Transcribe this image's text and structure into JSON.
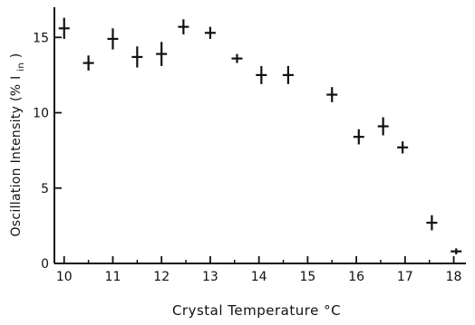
{
  "chart_data": {
    "type": "scatter",
    "title": "",
    "xlabel": "Crystal Temperature °C",
    "ylabel": "Oscillation Intensity (% I",
    "ylabel_subscript": "in",
    "ylabel_suffix": ")",
    "xlim": [
      9.8,
      18.25
    ],
    "ylim": [
      0,
      17
    ],
    "x_ticks": [
      10,
      11,
      12,
      13,
      14,
      15,
      16,
      17,
      18
    ],
    "x_tick_labels": [
      "10",
      "11",
      "12",
      "13",
      "14",
      "15",
      "16",
      "17",
      "18"
    ],
    "x_minor_ticks": [
      10.5,
      11.5,
      12.5,
      13.5,
      14.5,
      15.5,
      16.5,
      17.5
    ],
    "y_ticks": [
      0,
      5,
      10,
      15
    ],
    "y_tick_labels": [
      "0",
      "5",
      "10",
      "15"
    ],
    "grid": false,
    "legend": "none",
    "marker": "cross with vertical error bar",
    "series": [
      {
        "points": [
          {
            "x": 10.0,
            "y": 15.6,
            "err": 0.7
          },
          {
            "x": 10.5,
            "y": 13.3,
            "err": 0.5
          },
          {
            "x": 11.0,
            "y": 14.9,
            "err": 0.7
          },
          {
            "x": 11.5,
            "y": 13.7,
            "err": 0.7
          },
          {
            "x": 12.0,
            "y": 13.9,
            "err": 0.8
          },
          {
            "x": 12.45,
            "y": 15.7,
            "err": 0.5
          },
          {
            "x": 13.0,
            "y": 15.3,
            "err": 0.4
          },
          {
            "x": 13.55,
            "y": 13.6,
            "err": 0.3
          },
          {
            "x": 14.05,
            "y": 12.5,
            "err": 0.6
          },
          {
            "x": 14.6,
            "y": 12.5,
            "err": 0.6
          },
          {
            "x": 15.5,
            "y": 11.2,
            "err": 0.5
          },
          {
            "x": 16.05,
            "y": 8.4,
            "err": 0.5
          },
          {
            "x": 16.55,
            "y": 9.1,
            "err": 0.6
          },
          {
            "x": 16.95,
            "y": 7.7,
            "err": 0.4
          },
          {
            "x": 17.55,
            "y": 2.7,
            "err": 0.5
          },
          {
            "x": 18.05,
            "y": 0.8,
            "err": 0.2
          }
        ]
      }
    ]
  }
}
